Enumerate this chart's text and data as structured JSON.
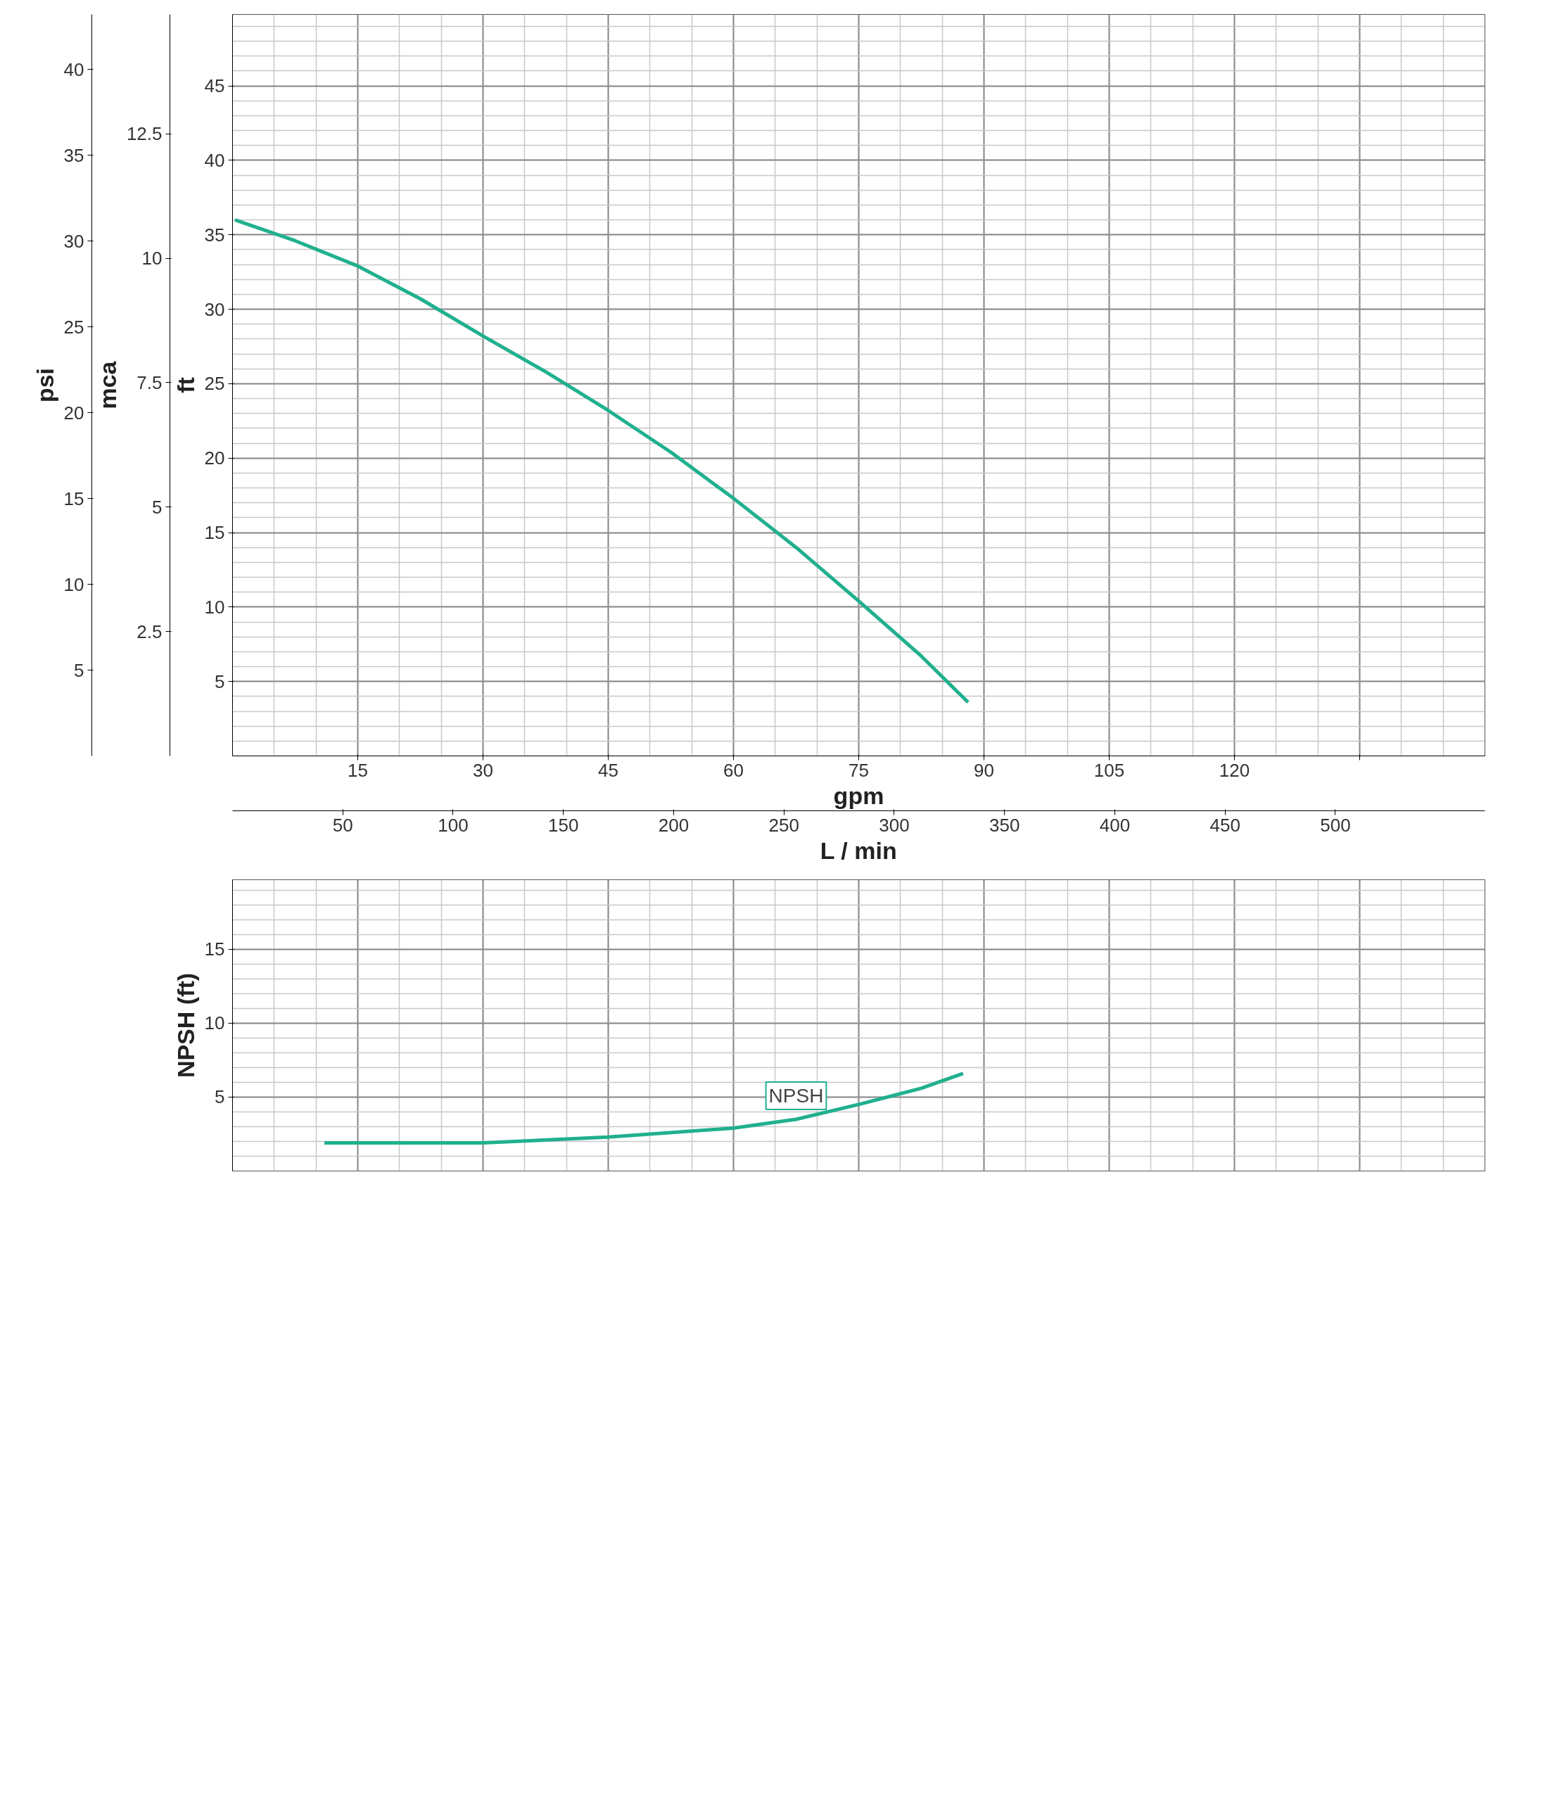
{
  "chart_data": [
    {
      "type": "line",
      "xlabel": "gpm",
      "x2label": "L / min",
      "ylabel": "ft",
      "y2label": "mca",
      "y3label": "psi",
      "xlim": [
        0,
        150
      ],
      "xticks": [
        15,
        30,
        45,
        60,
        75,
        90,
        105,
        120,
        {
          "value": 135,
          "label": null
        }
      ],
      "x2lim": [
        0,
        567.8
      ],
      "x2ticks": [
        50,
        100,
        150,
        200,
        250,
        300,
        350,
        400,
        450,
        500
      ],
      "ylim": [
        0,
        49.8
      ],
      "yticks": [
        5,
        10,
        15,
        20,
        25,
        30,
        35,
        40,
        45
      ],
      "y2lim": [
        0,
        14.9
      ],
      "y2ticks": [
        2.5,
        5,
        7.5,
        10,
        12.5
      ],
      "y3lim": [
        0,
        43.2
      ],
      "y3ticks": [
        5,
        10,
        15,
        20,
        25,
        30,
        35,
        40
      ],
      "grid": true,
      "marker": "none",
      "line_style": "solid",
      "series": [
        {
          "color": "#20b08e",
          "x": [
            0.3,
            7.5,
            15,
            22.5,
            30,
            37.5,
            45,
            52.5,
            60,
            67.5,
            75,
            82.5,
            88.1
          ],
          "values": [
            36.0,
            34.6,
            32.9,
            30.7,
            28.2,
            25.8,
            23.2,
            20.4,
            17.3,
            14.0,
            10.4,
            6.7,
            3.6
          ]
        }
      ]
    },
    {
      "type": "line",
      "ylabel": "NPSH (ft)",
      "xlim": [
        0,
        150
      ],
      "xticks": [
        15,
        30,
        45,
        60,
        75,
        90,
        105,
        120,
        {
          "value": 135,
          "label": null
        }
      ],
      "ylim": [
        0,
        19.7
      ],
      "yticks": [
        5,
        10,
        15
      ],
      "tick_labels": "y",
      "grid": true,
      "marker": "none",
      "line_style": "solid",
      "series": [
        {
          "name": "NPSH",
          "color": "#20b08e",
          "x": [
            11.0,
            20,
            30,
            45,
            60,
            67.5,
            75,
            82.5,
            87.5
          ],
          "values": [
            1.9,
            1.9,
            1.9,
            2.3,
            2.9,
            3.5,
            4.5,
            5.6,
            6.6
          ]
        }
      ]
    }
  ]
}
